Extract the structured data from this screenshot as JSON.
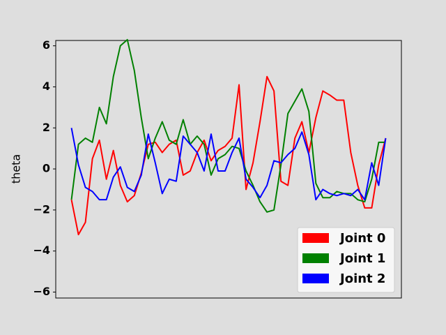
{
  "chart_data": {
    "type": "line",
    "y_label": "theta",
    "x": [
      0,
      1,
      2,
      3,
      4,
      5,
      6,
      7,
      8,
      9,
      10,
      11,
      12,
      13,
      14,
      15,
      16,
      17,
      18,
      19,
      20,
      21,
      22,
      23,
      24,
      25,
      26,
      27,
      28,
      29,
      30,
      31,
      32,
      33,
      34,
      35,
      36,
      37,
      38,
      39,
      40,
      41,
      42,
      43,
      44,
      45
    ],
    "xlim": [
      -2.25,
      47.25
    ],
    "ylim": [
      -6.29,
      6.26
    ],
    "yticks": [
      {
        "value": -6,
        "label": "−6"
      },
      {
        "value": -4,
        "label": "−4"
      },
      {
        "value": -2,
        "label": "−2"
      },
      0,
      2,
      4,
      6
    ],
    "legend_position": "lower right",
    "series": [
      {
        "name": "Joint 0",
        "color": "#ff0000",
        "values": [
          -1.5,
          -3.2,
          -2.6,
          0.5,
          1.4,
          -0.5,
          0.9,
          -0.8,
          -1.6,
          -1.3,
          -0.2,
          1.2,
          1.3,
          0.8,
          1.2,
          1.4,
          -0.3,
          -0.1,
          0.8,
          1.4,
          0.4,
          0.9,
          1.1,
          1.5,
          4.1,
          -1.0,
          0.3,
          2.3,
          4.5,
          3.8,
          -0.6,
          -0.8,
          1.5,
          2.3,
          0.8,
          2.5,
          3.8,
          3.6,
          3.35,
          3.35,
          0.8,
          -0.8,
          -1.9,
          -1.9,
          0.2,
          1.5
        ]
      },
      {
        "name": "Joint 1",
        "color": "#008000",
        "values": [
          -1.5,
          1.2,
          1.5,
          1.3,
          3.0,
          2.2,
          4.5,
          6.0,
          6.3,
          4.8,
          2.5,
          0.5,
          1.5,
          2.3,
          1.4,
          1.2,
          2.4,
          1.2,
          1.6,
          1.2,
          -0.3,
          0.5,
          0.7,
          1.1,
          1.0,
          -0.1,
          -0.8,
          -1.6,
          -2.1,
          -2.0,
          0.2,
          2.7,
          3.3,
          3.9,
          2.8,
          -0.7,
          -1.4,
          -1.4,
          -1.1,
          -1.2,
          -1.2,
          -1.5,
          -1.6,
          -0.5,
          1.3,
          1.3
        ]
      },
      {
        "name": "Joint 2",
        "color": "#0000ff",
        "values": [
          2.0,
          0.2,
          -0.9,
          -1.1,
          -1.5,
          -1.5,
          -0.4,
          0.1,
          -0.9,
          -1.1,
          -0.3,
          1.7,
          0.3,
          -1.2,
          -0.5,
          -0.6,
          1.6,
          1.2,
          0.8,
          -0.1,
          1.7,
          -0.1,
          -0.1,
          0.8,
          1.5,
          -0.5,
          -0.9,
          -1.4,
          -0.8,
          0.4,
          0.3,
          0.7,
          1.0,
          1.8,
          0.7,
          -1.5,
          -1.0,
          -1.2,
          -1.3,
          -1.2,
          -1.3,
          -1.0,
          -1.5,
          0.3,
          -0.8,
          1.5
        ]
      }
    ]
  }
}
